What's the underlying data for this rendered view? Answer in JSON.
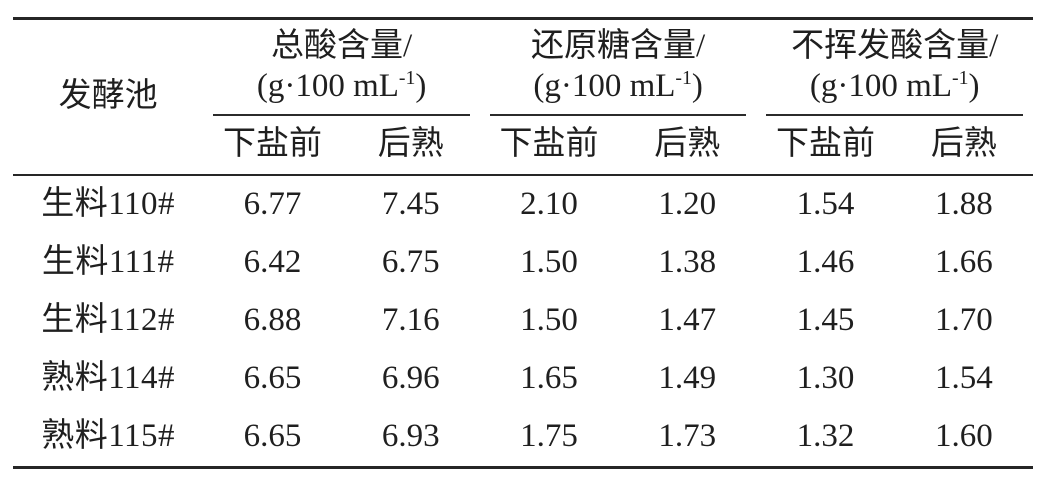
{
  "table": {
    "pool_header": "发酵池",
    "groups": [
      {
        "title": "总酸含量/",
        "unit_prefix": "(g·100 mL",
        "unit_sup": "-1",
        "unit_suffix": ")",
        "sub": [
          "下盐前",
          "后熟"
        ]
      },
      {
        "title": "还原糖含量/",
        "unit_prefix": "(g·100 mL",
        "unit_sup": "-1",
        "unit_suffix": ")",
        "sub": [
          "下盐前",
          "后熟"
        ]
      },
      {
        "title": "不挥发酸含量/",
        "unit_prefix": "(g·100 mL",
        "unit_sup": "-1",
        "unit_suffix": ")",
        "sub": [
          "下盐前",
          "后熟"
        ]
      }
    ],
    "rows": [
      {
        "pool": "生料110#",
        "values": [
          "6.77",
          "7.45",
          "2.10",
          "1.20",
          "1.54",
          "1.88"
        ]
      },
      {
        "pool": "生料111#",
        "values": [
          "6.42",
          "6.75",
          "1.50",
          "1.38",
          "1.46",
          "1.66"
        ]
      },
      {
        "pool": "生料112#",
        "values": [
          "6.88",
          "7.16",
          "1.50",
          "1.47",
          "1.45",
          "1.70"
        ]
      },
      {
        "pool": "熟料114#",
        "values": [
          "6.65",
          "6.96",
          "1.65",
          "1.49",
          "1.30",
          "1.54"
        ]
      },
      {
        "pool": "熟料115#",
        "values": [
          "6.65",
          "6.93",
          "1.75",
          "1.73",
          "1.32",
          "1.60"
        ]
      }
    ]
  },
  "chart_data": {
    "type": "table",
    "columns": [
      "发酵池",
      "总酸含量/(g·100 mL-1) 下盐前",
      "总酸含量/(g·100 mL-1) 后熟",
      "还原糖含量/(g·100 mL-1) 下盐前",
      "还原糖含量/(g·100 mL-1) 后熟",
      "不挥发酸含量/(g·100 mL-1) 下盐前",
      "不挥发酸含量/(g·100 mL-1) 后熟"
    ],
    "rows": [
      [
        "生料110#",
        6.77,
        7.45,
        2.1,
        1.2,
        1.54,
        1.88
      ],
      [
        "生料111#",
        6.42,
        6.75,
        1.5,
        1.38,
        1.46,
        1.66
      ],
      [
        "生料112#",
        6.88,
        7.16,
        1.5,
        1.47,
        1.45,
        1.7
      ],
      [
        "熟料114#",
        6.65,
        6.96,
        1.65,
        1.49,
        1.3,
        1.54
      ],
      [
        "熟料115#",
        6.65,
        6.93,
        1.75,
        1.73,
        1.32,
        1.6
      ]
    ]
  }
}
